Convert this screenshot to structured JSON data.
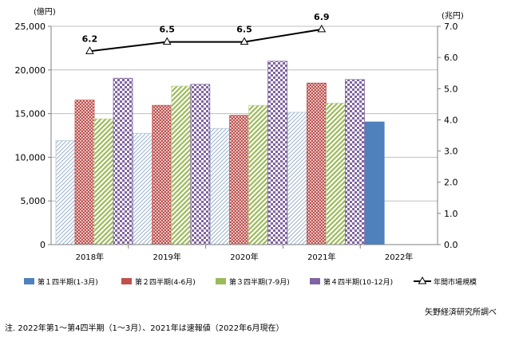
{
  "chart_data": {
    "type": "bar",
    "categories": [
      "2018年",
      "2019年",
      "2020年",
      "2021年",
      "2022年"
    ],
    "y_left_unit": "(億円)",
    "y_right_unit": "(兆円)",
    "ylim_left": [
      0,
      25000
    ],
    "ylim_right": [
      0.0,
      7.0
    ],
    "y_left_ticks": [
      "0",
      "5,000",
      "10,000",
      "15,000",
      "20,000",
      "25,000"
    ],
    "y_right_ticks": [
      "0.0",
      "1.0",
      "2.0",
      "3.0",
      "4.0",
      "5.0",
      "6.0",
      "7.0"
    ],
    "grid": true,
    "legend_position": "bottom",
    "series": [
      {
        "name": "第１四半期(1-3月)",
        "color": "#4f81bd",
        "pattern": "diagonal-hatch",
        "values": [
          11900,
          12750,
          13300,
          15150,
          14050
        ]
      },
      {
        "name": "第２四半期(4-6月)",
        "color": "#c0504d",
        "pattern": "dots",
        "values": [
          16550,
          15950,
          14800,
          18500,
          null
        ]
      },
      {
        "name": "第３四半期(7-9月)",
        "color": "#9bbb59",
        "pattern": "diagonal-stripes",
        "values": [
          14400,
          18150,
          15950,
          16200,
          null
        ]
      },
      {
        "name": "第４四半期(10-12月)",
        "color": "#8064a2",
        "pattern": "checkerboard",
        "values": [
          19050,
          18350,
          21000,
          18900,
          null
        ]
      }
    ],
    "line_series": {
      "name": "年間市場規模",
      "axis": "right",
      "values": [
        6.2,
        6.5,
        6.5,
        6.9,
        null
      ],
      "labels": [
        "6.2",
        "6.5",
        "6.5",
        "6.9",
        ""
      ]
    }
  },
  "source": "矢野経済研究所調べ",
  "footnote": "注. 2022年第1～第4四半期（1～3月）、2021年は速報値（2022年6月現在）"
}
